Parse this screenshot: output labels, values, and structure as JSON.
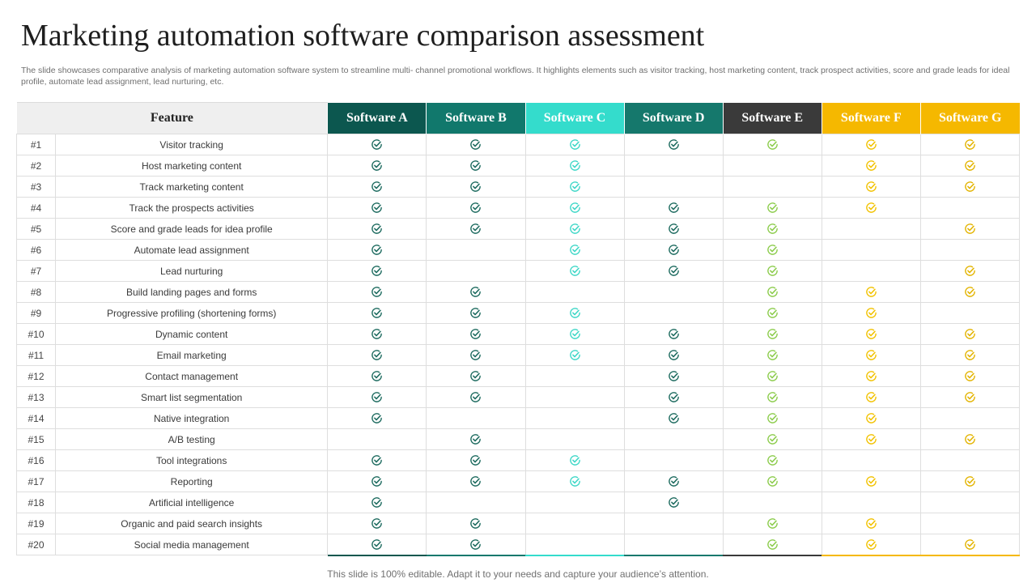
{
  "title": "Marketing automation software comparison assessment",
  "subtitle": "The slide showcases comparative analysis of marketing automation software system to streamline multi- channel promotional workflows. It highlights elements such as visitor tracking, host marketing content, track prospect activities, score and grade leads for ideal profile, automate lead assignment, lead nurturing, etc.",
  "table": {
    "feature_header": "Feature",
    "check_icon": "check-circle-icon",
    "software": [
      {
        "name": "Software A",
        "color": "#0c574f"
      },
      {
        "name": "Software B",
        "color": "#11786c"
      },
      {
        "name": "Software C",
        "color": "#34dccc"
      },
      {
        "name": "Software D",
        "color": "#15786c"
      },
      {
        "name": "Software E",
        "color": "#3a3a3a"
      },
      {
        "name": "Software F",
        "color": "#f5b800"
      },
      {
        "name": "Software G",
        "color": "#f5b800"
      }
    ],
    "icon_colors": [
      "#1d6b5f",
      "#1d6b5f",
      "#3ed7c7",
      "#1d6b5f",
      "#8ccc4c",
      "#f2c200",
      "#e3b400"
    ],
    "rows": [
      {
        "num": "#1",
        "feature": "Visitor tracking",
        "checks": [
          1,
          1,
          1,
          1,
          1,
          1,
          1
        ]
      },
      {
        "num": "#2",
        "feature": "Host marketing content",
        "checks": [
          1,
          1,
          1,
          0,
          0,
          1,
          1
        ]
      },
      {
        "num": "#3",
        "feature": "Track marketing content",
        "checks": [
          1,
          1,
          1,
          0,
          0,
          1,
          1
        ]
      },
      {
        "num": "#4",
        "feature": "Track the prospects activities",
        "checks": [
          1,
          1,
          1,
          1,
          1,
          1,
          0
        ]
      },
      {
        "num": "#5",
        "feature": "Score and grade leads for idea profile",
        "checks": [
          1,
          1,
          1,
          1,
          1,
          0,
          1
        ]
      },
      {
        "num": "#6",
        "feature": "Automate lead assignment",
        "checks": [
          1,
          0,
          1,
          1,
          1,
          0,
          0
        ]
      },
      {
        "num": "#7",
        "feature": "Lead nurturing",
        "checks": [
          1,
          0,
          1,
          1,
          1,
          0,
          1
        ]
      },
      {
        "num": "#8",
        "feature": "Build landing pages and forms",
        "checks": [
          1,
          1,
          0,
          0,
          1,
          1,
          1
        ]
      },
      {
        "num": "#9",
        "feature": "Progressive profiling (shortening forms)",
        "checks": [
          1,
          1,
          1,
          0,
          1,
          1,
          0
        ]
      },
      {
        "num": "#10",
        "feature": "Dynamic content",
        "checks": [
          1,
          1,
          1,
          1,
          1,
          1,
          1
        ]
      },
      {
        "num": "#11",
        "feature": "Email marketing",
        "checks": [
          1,
          1,
          1,
          1,
          1,
          1,
          1
        ]
      },
      {
        "num": "#12",
        "feature": "Contact management",
        "checks": [
          1,
          1,
          0,
          1,
          1,
          1,
          1
        ]
      },
      {
        "num": "#13",
        "feature": "Smart list segmentation",
        "checks": [
          1,
          1,
          0,
          1,
          1,
          1,
          1
        ]
      },
      {
        "num": "#14",
        "feature": "Native integration",
        "checks": [
          1,
          0,
          0,
          1,
          1,
          1,
          0
        ]
      },
      {
        "num": "#15",
        "feature": "A/B testing",
        "checks": [
          0,
          1,
          0,
          0,
          1,
          1,
          1
        ]
      },
      {
        "num": "#16",
        "feature": "Tool integrations",
        "checks": [
          1,
          1,
          1,
          0,
          1,
          0,
          0
        ]
      },
      {
        "num": "#17",
        "feature": "Reporting",
        "checks": [
          1,
          1,
          1,
          1,
          1,
          1,
          1
        ]
      },
      {
        "num": "#18",
        "feature": "Artificial intelligence",
        "checks": [
          1,
          0,
          0,
          1,
          0,
          0,
          0
        ]
      },
      {
        "num": "#19",
        "feature": "Organic and paid search insights",
        "checks": [
          1,
          1,
          0,
          0,
          1,
          1,
          0
        ]
      },
      {
        "num": "#20",
        "feature": "Social media management",
        "checks": [
          1,
          1,
          0,
          0,
          1,
          1,
          1
        ]
      }
    ]
  },
  "footer": "This slide is 100% editable. Adapt it to your needs and capture your audience’s attention."
}
